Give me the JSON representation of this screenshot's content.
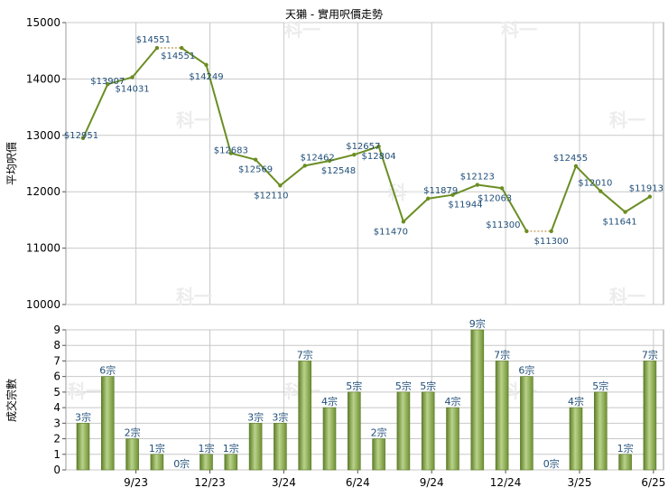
{
  "title": "天獺 - 實用呎價走勢",
  "watermark": "科一",
  "colors": {
    "line": "#6b8e23",
    "bar_dark": "#5f7f2a",
    "bar_light": "#b9d38a",
    "label": "#1f4e79",
    "grid": "#c8c8c8",
    "dot_segment": "#d7b98c"
  },
  "chart_data": [
    {
      "type": "line",
      "ylabel": "平均呎價",
      "ylim": [
        10000,
        15000
      ],
      "yticks": [
        "10000",
        "11000",
        "12000",
        "13000",
        "14000",
        "15000"
      ],
      "grid": true,
      "x": [
        1,
        2,
        3,
        4,
        5,
        6,
        7,
        8,
        9,
        10,
        11,
        12,
        13,
        14,
        15,
        16,
        17,
        18,
        19,
        20,
        21,
        22,
        23,
        24
      ],
      "values": [
        12951,
        13907,
        14031,
        14551,
        14551,
        14249,
        12683,
        12569,
        12110,
        12462,
        12548,
        12657,
        12804,
        11470,
        11879,
        11944,
        12123,
        12063,
        11300,
        11300,
        12455,
        12010,
        11641,
        11913
      ],
      "labels": [
        "$12951",
        "$13907",
        "$14031",
        "$14551",
        "$14551",
        "$14249",
        "$12683",
        "$12569",
        "$12110",
        "$12462",
        "$12548",
        "$12657",
        "$12804",
        "$11470",
        "$11879",
        "$11944",
        "$12123",
        "$12063",
        "$11300",
        "$11300",
        "$12455",
        "$12010",
        "$11641",
        "$11913"
      ],
      "dotted_segments": [
        [
          4,
          5
        ],
        [
          19,
          20
        ]
      ]
    },
    {
      "type": "bar",
      "ylabel": "成交宗數",
      "ylim": [
        0,
        9
      ],
      "yticks": [
        "0",
        "1",
        "2",
        "3",
        "4",
        "5",
        "6",
        "7",
        "8",
        "9"
      ],
      "grid": true,
      "x": [
        1,
        2,
        3,
        4,
        5,
        6,
        7,
        8,
        9,
        10,
        11,
        12,
        13,
        14,
        15,
        16,
        17,
        18,
        19,
        20,
        21,
        22,
        23,
        24
      ],
      "values": [
        3,
        6,
        2,
        1,
        0,
        1,
        1,
        3,
        3,
        7,
        4,
        5,
        2,
        5,
        5,
        4,
        9,
        7,
        6,
        0,
        4,
        5,
        1,
        7
      ],
      "labels": [
        "3宗",
        "6宗",
        "2宗",
        "1宗",
        "0宗",
        "1宗",
        "1宗",
        "3宗",
        "3宗",
        "7宗",
        "4宗",
        "5宗",
        "2宗",
        "5宗",
        "5宗",
        "4宗",
        "9宗",
        "7宗",
        "6宗",
        "0宗",
        "4宗",
        "5宗",
        "1宗",
        "7宗"
      ],
      "x_tick_labels": [
        "9/23",
        "12/23",
        "3/24",
        "6/24",
        "9/24",
        "12/24",
        "3/25",
        "6/25"
      ],
      "x_tick_positions": [
        3,
        6,
        9,
        12,
        15,
        18,
        21,
        24
      ]
    }
  ]
}
